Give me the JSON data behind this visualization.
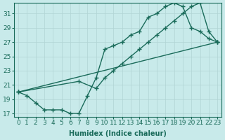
{
  "xlabel": "Humidex (Indice chaleur)",
  "bg_color": "#c8eaea",
  "line_color": "#1a6b5a",
  "grid_color": "#b0d4d4",
  "xlim": [
    -0.5,
    23.5
  ],
  "ylim": [
    16.5,
    32.5
  ],
  "xticks": [
    0,
    1,
    2,
    3,
    4,
    5,
    6,
    7,
    8,
    9,
    10,
    11,
    12,
    13,
    14,
    15,
    16,
    17,
    18,
    19,
    20,
    21,
    22,
    23
  ],
  "yticks": [
    17,
    19,
    21,
    23,
    25,
    27,
    29,
    31
  ],
  "curve1_x": [
    0,
    1,
    2,
    3,
    4,
    5,
    6,
    7,
    8,
    9,
    10,
    11,
    12,
    13,
    14,
    15,
    16,
    17,
    18,
    19,
    20,
    21,
    22,
    23
  ],
  "curve1_y": [
    20.0,
    19.5,
    18.5,
    17.5,
    17.5,
    17.5,
    17.0,
    17.0,
    19.5,
    22.0,
    26.0,
    26.5,
    27.0,
    28.0,
    28.5,
    30.5,
    31.0,
    32.0,
    32.5,
    32.0,
    29.0,
    28.5,
    27.5,
    27.0
  ],
  "curve2_x": [
    0,
    7,
    9,
    10,
    11,
    12,
    13,
    14,
    15,
    16,
    17,
    18,
    19,
    20,
    21,
    22,
    23
  ],
  "curve2_y": [
    20.0,
    21.5,
    20.5,
    22.0,
    23.0,
    24.0,
    25.0,
    26.0,
    27.0,
    28.0,
    29.0,
    30.0,
    31.0,
    32.0,
    32.5,
    28.5,
    27.0
  ],
  "axis_fontsize": 7,
  "tick_fontsize": 6.5,
  "linewidth": 1.0,
  "markersize": 2.5
}
